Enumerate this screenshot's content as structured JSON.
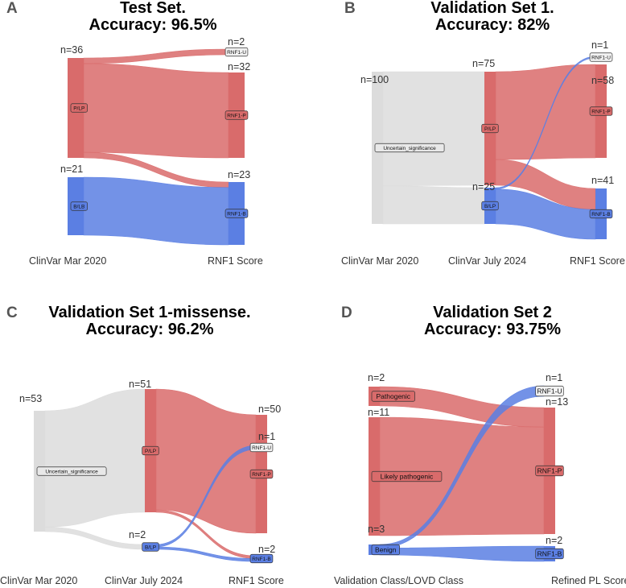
{
  "colors": {
    "pathogenic": "#d96b6b",
    "benign": "#5b7fe3",
    "uncertain": "#dcdcdc",
    "label_box_white": "#f2f2f2",
    "label_box_dark": "#e8e8e8"
  },
  "chart_data": [
    {
      "type": "sankey",
      "panel": "A",
      "title_line1": "Test Set.",
      "title_line2": "Accuracy: 96.5%",
      "axes": [
        "ClinVar Mar 2020",
        "RNF1 Score"
      ],
      "nodes": [
        {
          "id": "PLP",
          "label": "P/LP",
          "column": 0,
          "count_label": "n=36",
          "value": 36,
          "color": "pathogenic"
        },
        {
          "id": "BLB",
          "label": "B/LB",
          "column": 0,
          "count_label": "n=21",
          "value": 21,
          "color": "benign"
        },
        {
          "id": "U",
          "label": "RNF1-U",
          "column": 1,
          "count_label": "n=2",
          "value": 2,
          "color": "pathogenic"
        },
        {
          "id": "P",
          "label": "RNF1-P",
          "column": 1,
          "count_label": "n=32",
          "value": 32,
          "color": "pathogenic"
        },
        {
          "id": "B",
          "label": "RNF1-B",
          "column": 1,
          "count_label": "n=23",
          "value": 23,
          "color": "benign"
        }
      ],
      "links": [
        {
          "source": "PLP",
          "target": "U",
          "value": 2,
          "color": "pathogenic"
        },
        {
          "source": "PLP",
          "target": "P",
          "value": 32,
          "color": "pathogenic"
        },
        {
          "source": "PLP",
          "target": "B",
          "value": 2,
          "color": "pathogenic"
        },
        {
          "source": "BLB",
          "target": "B",
          "value": 21,
          "color": "benign"
        }
      ]
    },
    {
      "type": "sankey",
      "panel": "B",
      "title_line1": "Validation Set 1.",
      "title_line2": "Accuracy: 82%",
      "axes": [
        "ClinVar Mar 2020",
        "ClinVar July 2024",
        "RNF1 Score"
      ],
      "nodes": [
        {
          "id": "VUS",
          "label": "Uncertain_significance",
          "column": 0,
          "count_label": "n=100",
          "value": 100,
          "color": "uncertain"
        },
        {
          "id": "PLP",
          "label": "P/LP",
          "column": 1,
          "count_label": "n=75",
          "value": 75,
          "color": "pathogenic"
        },
        {
          "id": "BLB",
          "label": "B/LP",
          "column": 1,
          "count_label": "n=25",
          "value": 25,
          "color": "benign"
        },
        {
          "id": "U",
          "label": "RNF1-U",
          "column": 2,
          "count_label": "n=1",
          "value": 1,
          "color": "benign"
        },
        {
          "id": "P",
          "label": "RNF1-P",
          "column": 2,
          "count_label": "n=58",
          "value": 58,
          "color": "pathogenic"
        },
        {
          "id": "B",
          "label": "RNF1-B",
          "column": 2,
          "count_label": "n=41",
          "value": 41,
          "color": "benign"
        }
      ],
      "links": [
        {
          "source": "VUS",
          "target": "PLP",
          "value": 75,
          "color": "uncertain"
        },
        {
          "source": "VUS",
          "target": "BLB",
          "value": 25,
          "color": "uncertain"
        },
        {
          "source": "PLP",
          "target": "P",
          "value": 58,
          "color": "pathogenic"
        },
        {
          "source": "PLP",
          "target": "B",
          "value": 17,
          "color": "pathogenic"
        },
        {
          "source": "BLB",
          "target": "U",
          "value": 1,
          "color": "benign"
        },
        {
          "source": "BLB",
          "target": "B",
          "value": 24,
          "color": "benign"
        }
      ]
    },
    {
      "type": "sankey",
      "panel": "C",
      "title_line1": "Validation Set 1-missense.",
      "title_line2": "Accuracy: 96.2%",
      "axes": [
        "ClinVar Mar 2020",
        "ClinVar July 2024",
        "RNF1 Score"
      ],
      "nodes": [
        {
          "id": "VUS",
          "label": "Uncertain_significance",
          "column": 0,
          "count_label": "n=53",
          "value": 53,
          "color": "uncertain"
        },
        {
          "id": "PLP",
          "label": "P/LP",
          "column": 1,
          "count_label": "n=51",
          "value": 51,
          "color": "pathogenic"
        },
        {
          "id": "BLB",
          "label": "B/LP",
          "column": 1,
          "count_label": "n=2",
          "value": 2,
          "color": "benign"
        },
        {
          "id": "U",
          "label": "RNF1-U",
          "column": 2,
          "count_label": "n=1",
          "value": 1,
          "color": "benign"
        },
        {
          "id": "P",
          "label": "RNF1-P",
          "column": 2,
          "count_label": "n=50",
          "value": 50,
          "color": "pathogenic"
        },
        {
          "id": "B",
          "label": "RNF1-B",
          "column": 2,
          "count_label": "n=2",
          "value": 2,
          "color": "benign"
        }
      ],
      "links": [
        {
          "source": "VUS",
          "target": "PLP",
          "value": 51,
          "color": "uncertain"
        },
        {
          "source": "VUS",
          "target": "BLB",
          "value": 2,
          "color": "uncertain"
        },
        {
          "source": "PLP",
          "target": "P",
          "value": 50,
          "color": "pathogenic"
        },
        {
          "source": "PLP",
          "target": "B",
          "value": 1,
          "color": "pathogenic"
        },
        {
          "source": "BLB",
          "target": "U",
          "value": 1,
          "color": "benign"
        },
        {
          "source": "BLB",
          "target": "B",
          "value": 1,
          "color": "benign"
        }
      ]
    },
    {
      "type": "sankey",
      "panel": "D",
      "title_line1": "Validation Set 2",
      "title_line2": "Accuracy: 93.75%",
      "axes": [
        "Validation Class/LOVD Class",
        "Refined PL Score"
      ],
      "nodes": [
        {
          "id": "Path",
          "label": "Pathogenic",
          "column": 0,
          "count_label": "n=2",
          "value": 2,
          "color": "pathogenic"
        },
        {
          "id": "LP",
          "label": "Likely pathogenic",
          "column": 0,
          "count_label": "n=11",
          "value": 11,
          "color": "pathogenic"
        },
        {
          "id": "Ben",
          "label": "Benign",
          "column": 0,
          "count_label": "n=3",
          "value": 3,
          "color": "benign"
        },
        {
          "id": "U",
          "label": "RNF1-U",
          "column": 1,
          "count_label": "n=1",
          "value": 1,
          "color": "benign"
        },
        {
          "id": "P",
          "label": "RNF1-P",
          "column": 1,
          "count_label": "n=13",
          "value": 13,
          "color": "pathogenic"
        },
        {
          "id": "B",
          "label": "RNF1-B",
          "column": 1,
          "count_label": "n=2",
          "value": 2,
          "color": "benign"
        }
      ],
      "links": [
        {
          "source": "Path",
          "target": "P",
          "value": 2,
          "color": "pathogenic"
        },
        {
          "source": "LP",
          "target": "P",
          "value": 11,
          "color": "pathogenic"
        },
        {
          "source": "Ben",
          "target": "U",
          "value": 1,
          "color": "benign"
        },
        {
          "source": "Ben",
          "target": "B",
          "value": 2,
          "color": "benign"
        }
      ]
    }
  ]
}
